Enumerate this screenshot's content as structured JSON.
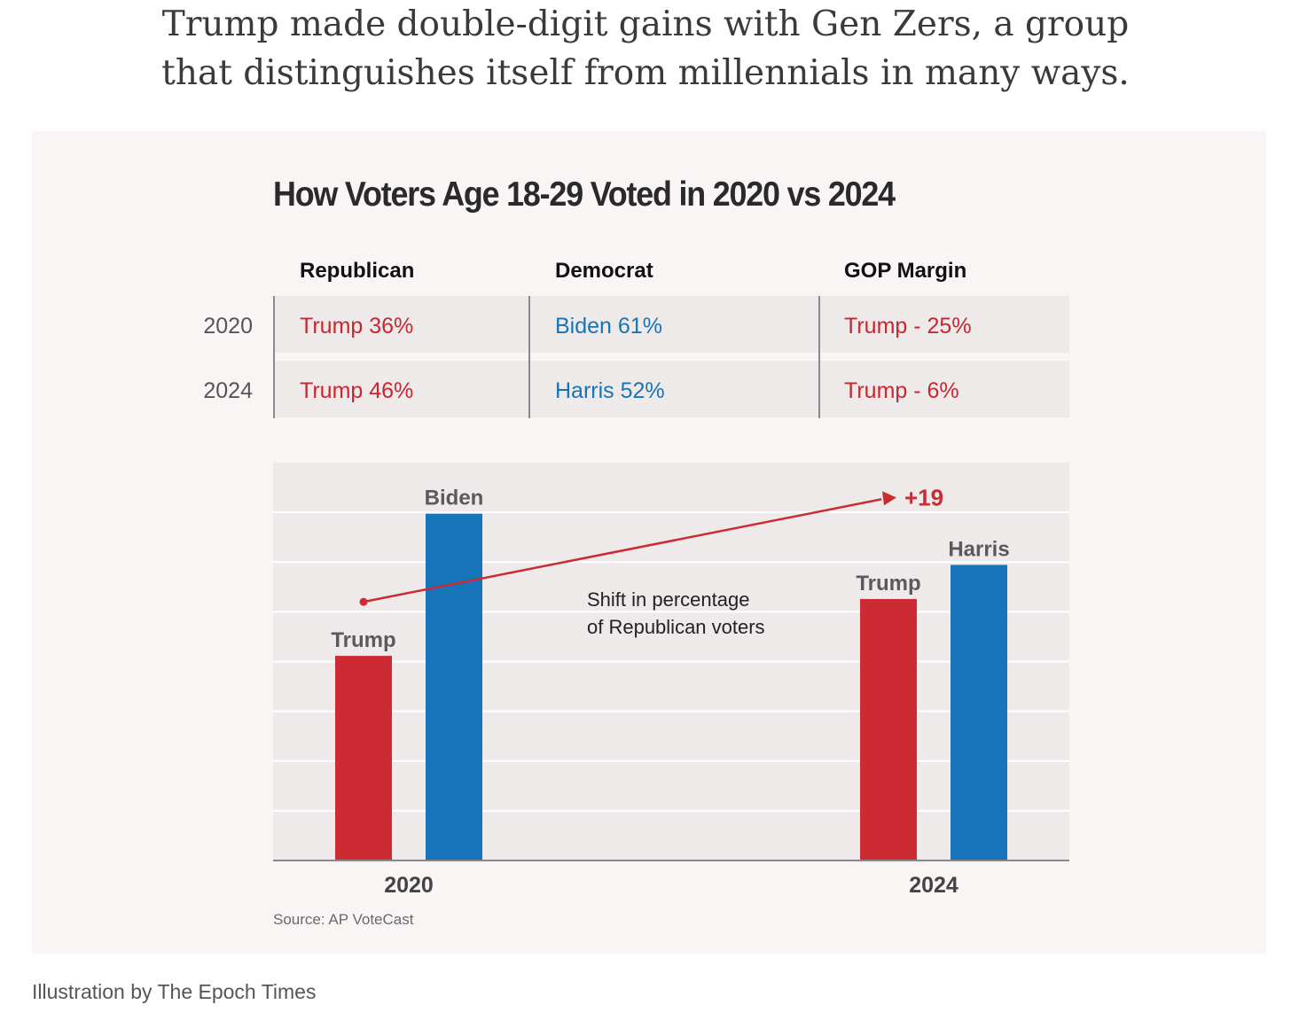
{
  "headline": {
    "line1": "Trump made double-digit gains with Gen Zers, a group",
    "line2": "that distinguishes itself from millennials in many ways."
  },
  "table": {
    "columns": [
      "Republican",
      "Democrat",
      "GOP Margin"
    ],
    "rows": [
      {
        "year": "2020",
        "republican": "Trump 36%",
        "democrat": "Biden 61%",
        "margin": "Trump - 25%"
      },
      {
        "year": "2024",
        "republican": "Trump 46%",
        "democrat": "Harris 52%",
        "margin": "Trump - 6%"
      }
    ]
  },
  "colors": {
    "republican": "#cc2b33",
    "democrat": "#1674b8",
    "grid": "#ffffff",
    "plot_bg": "#eeeaea",
    "axis": "#888888"
  },
  "annotation": {
    "shift_label": "+19",
    "note_line1": "Shift in percentage",
    "note_line2": "of Republican voters"
  },
  "source": "Source: AP VoteCast",
  "credit": "Illustration by The Epoch Times",
  "chart_data": {
    "type": "bar",
    "title": "How Voters Age 18-29 Voted in 2020 vs 2024",
    "categories": [
      "2020",
      "2024"
    ],
    "series": [
      {
        "name": "Republican",
        "bar_labels": [
          "Trump",
          "Trump"
        ],
        "values": [
          36,
          46
        ]
      },
      {
        "name": "Democrat",
        "bar_labels": [
          "Biden",
          "Harris"
        ],
        "values": [
          61,
          52
        ]
      }
    ],
    "ylim": [
      0,
      70
    ],
    "grid": true,
    "xlabel": "",
    "ylabel": ""
  }
}
